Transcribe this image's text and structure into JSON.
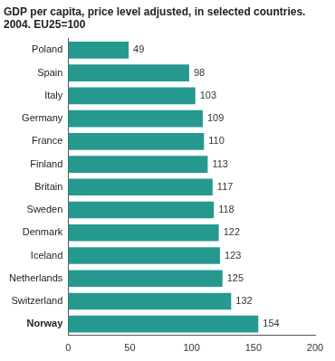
{
  "chart_data": {
    "type": "bar",
    "orientation": "horizontal",
    "title": [
      "GDP per capita, price level adjusted, in selected countries.",
      "2004. EU25=100"
    ],
    "categories": [
      "Poland",
      "Spain",
      "Italy",
      "Germany",
      "France",
      "Finland",
      "Britain",
      "Sweden",
      "Denmark",
      "Iceland",
      "Netherlands",
      "Switzerland",
      "Norway"
    ],
    "values": [
      49,
      98,
      103,
      109,
      110,
      113,
      117,
      118,
      122,
      123,
      125,
      132,
      154
    ],
    "color": "#26998f",
    "xlim": [
      0,
      200
    ],
    "xticks": [
      0,
      50,
      100,
      150,
      200
    ],
    "grid": false,
    "data_labels": true
  }
}
